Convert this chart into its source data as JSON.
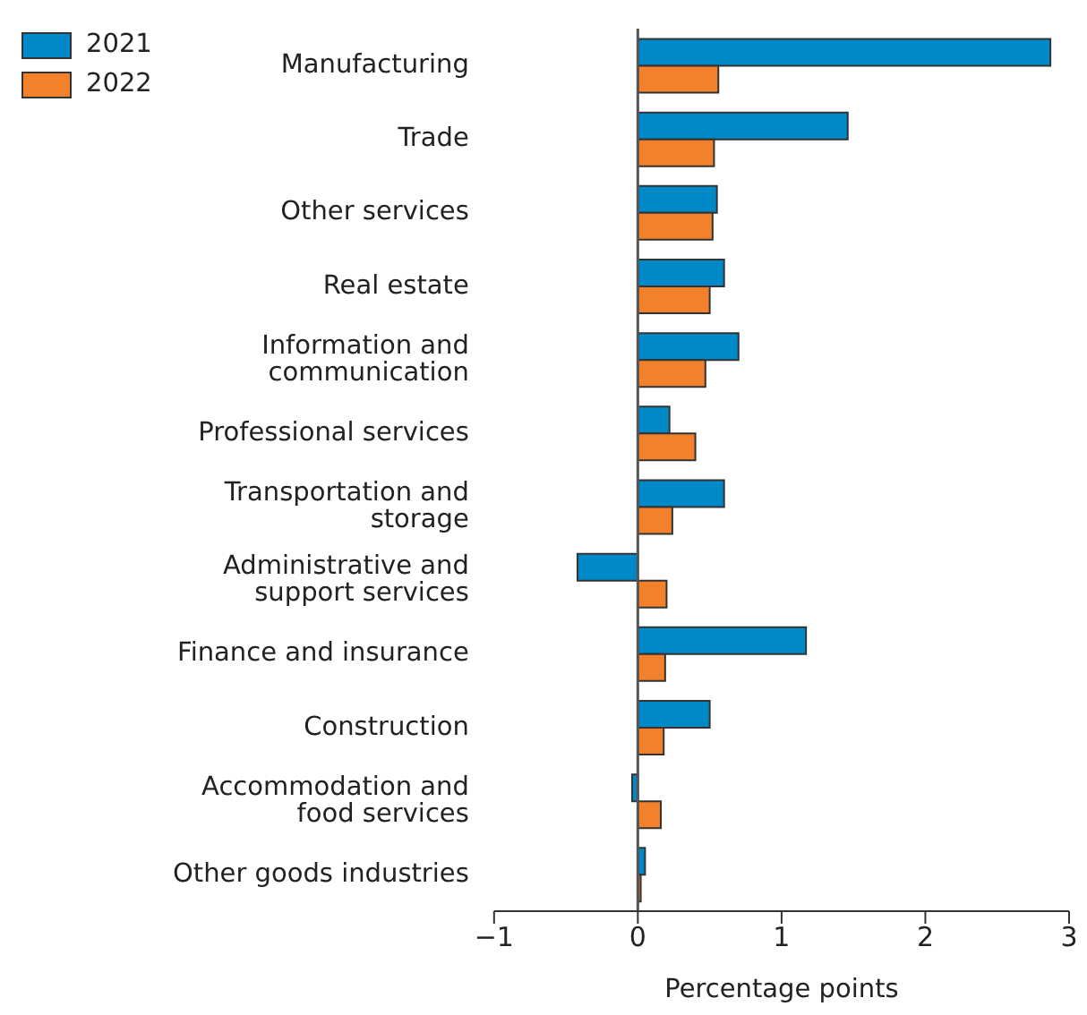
{
  "chart_data": {
    "type": "bar",
    "orientation": "horizontal",
    "xlabel": "Percentage points",
    "categories": [
      "Manufacturing",
      "Trade",
      "Other services",
      "Real estate",
      "Information and communication",
      "Professional services",
      "Transportation and storage",
      "Administrative and support services",
      "Finance and insurance",
      "Construction",
      "Accommodation and food services",
      "Other goods industries"
    ],
    "series": [
      {
        "name": "2021",
        "color": "#0089c8",
        "values": [
          2.87,
          1.46,
          0.55,
          0.6,
          0.7,
          0.22,
          0.6,
          -0.42,
          1.17,
          0.5,
          -0.04,
          0.05
        ]
      },
      {
        "name": "2022",
        "color": "#f3812c",
        "values": [
          0.56,
          0.53,
          0.52,
          0.5,
          0.47,
          0.4,
          0.24,
          0.2,
          0.19,
          0.18,
          0.16,
          0.02
        ]
      }
    ],
    "xlim": [
      -1,
      3
    ],
    "xticks": [
      -1,
      0,
      1,
      2,
      3
    ],
    "ref_lines": [
      {
        "axis": "x",
        "value": 0,
        "color": "#555555"
      }
    ],
    "grid": false,
    "legend": "top left"
  }
}
